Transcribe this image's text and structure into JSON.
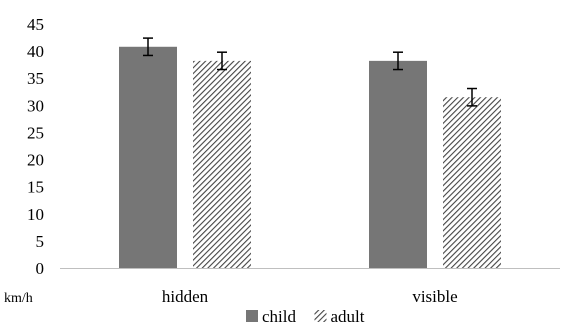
{
  "chart_data": {
    "type": "bar",
    "categories": [
      "hidden",
      "visible"
    ],
    "series": [
      {
        "name": "child",
        "values": [
          40.8,
          38.2
        ],
        "errors": [
          1.6,
          1.6
        ],
        "color": "#767676",
        "pattern": "solid"
      },
      {
        "name": "adult",
        "values": [
          38.2,
          31.5
        ],
        "errors": [
          1.6,
          1.6
        ],
        "color": "#444444",
        "pattern": "diagonal-hatch"
      }
    ],
    "xlabel": "km/h",
    "ylabel": "",
    "ylim": [
      0,
      45
    ],
    "yticks": [
      0,
      5,
      10,
      15,
      20,
      25,
      30,
      35,
      40,
      45
    ],
    "grid": false,
    "legend": "bottom"
  }
}
